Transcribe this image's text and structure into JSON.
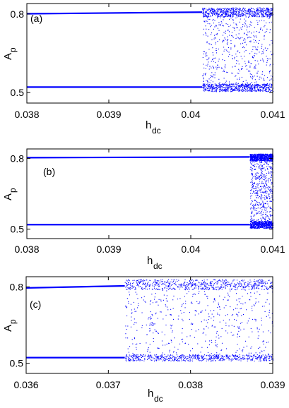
{
  "colors": {
    "series": "#0000ff",
    "axis": "#000000",
    "background": "#ffffff"
  },
  "chart_data": [
    {
      "type": "scatter",
      "panel_label": "(a)",
      "xlabel_main": "h",
      "xlabel_sub": "dc",
      "ylabel_main": "A",
      "ylabel_sub": "p",
      "xlim": [
        0.038,
        0.041
      ],
      "ylim": [
        0.46,
        0.84
      ],
      "xticks": [
        0.038,
        0.039,
        0.04,
        0.041
      ],
      "xtick_labels": [
        "0.038",
        "0.039",
        "0.04",
        "0.041"
      ],
      "yticks": [
        0.5,
        0.8
      ],
      "ytick_labels": [
        "0.5",
        "0.8"
      ],
      "series": [
        {
          "kind": "branch",
          "x": [
            0.038,
            0.04014
          ],
          "y": [
            0.801,
            0.807
          ]
        },
        {
          "kind": "branch",
          "x": [
            0.038,
            0.04014
          ],
          "y": [
            0.521,
            0.521
          ]
        },
        {
          "kind": "chaos",
          "x": [
            0.04014,
            0.041
          ],
          "y_band_top": [
            0.79,
            0.825
          ],
          "y_band_bottom": [
            0.505,
            0.535
          ],
          "y_spread": [
            0.52,
            0.82
          ]
        }
      ]
    },
    {
      "type": "scatter",
      "panel_label": "(b)",
      "xlabel_main": "h",
      "xlabel_sub": "dc",
      "ylabel_main": "A",
      "ylabel_sub": "p",
      "xlim": [
        0.038,
        0.041
      ],
      "ylim": [
        0.46,
        0.84
      ],
      "xticks": [
        0.038,
        0.039,
        0.04,
        0.041
      ],
      "xtick_labels": [
        "0.038",
        "0.039",
        "0.04",
        "0.041"
      ],
      "yticks": [
        0.5,
        0.8
      ],
      "ytick_labels": [
        "0.5",
        "0.8"
      ],
      "series": [
        {
          "kind": "branch",
          "x": [
            0.038,
            0.04072
          ],
          "y": [
            0.803,
            0.806
          ]
        },
        {
          "kind": "branch",
          "x": [
            0.038,
            0.04072
          ],
          "y": [
            0.519,
            0.519
          ]
        },
        {
          "kind": "chaos",
          "x": [
            0.04072,
            0.041
          ],
          "y_band_top": [
            0.79,
            0.82
          ],
          "y_band_bottom": [
            0.505,
            0.535
          ],
          "y_spread": [
            0.52,
            0.82
          ]
        }
      ]
    },
    {
      "type": "scatter",
      "panel_label": "(c)",
      "xlabel_main": "h",
      "xlabel_sub": "dc",
      "ylabel_main": "A",
      "ylabel_sub": "p",
      "xlim": [
        0.036,
        0.039
      ],
      "ylim": [
        0.46,
        0.84
      ],
      "xticks": [
        0.036,
        0.037,
        0.038,
        0.039
      ],
      "xtick_labels": [
        "0.036",
        "0.037",
        "0.038",
        "0.039"
      ],
      "yticks": [
        0.5,
        0.8
      ],
      "ytick_labels": [
        "0.5",
        "0.8"
      ],
      "series": [
        {
          "kind": "branch",
          "x": [
            0.036,
            0.0372
          ],
          "y": [
            0.796,
            0.804
          ]
        },
        {
          "kind": "branch",
          "x": [
            0.036,
            0.0372
          ],
          "y": [
            0.522,
            0.522
          ]
        },
        {
          "kind": "chaos",
          "x": [
            0.0372,
            0.039
          ],
          "y_band_top": [
            0.79,
            0.83
          ],
          "y_band_bottom": [
            0.51,
            0.535
          ],
          "y_spread": [
            0.52,
            0.82
          ]
        }
      ]
    }
  ]
}
